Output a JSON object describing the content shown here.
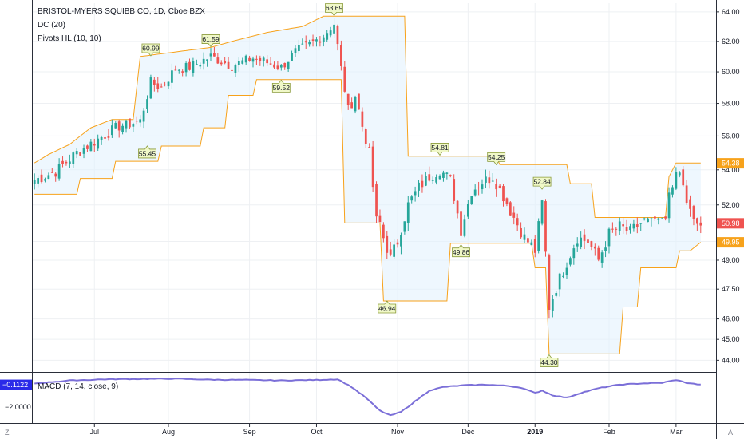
{
  "header": {
    "title": "BRISTOL-MYERS SQUIBB CO, 1D, Cboe BZX",
    "indicator_dc": "DC (20)",
    "indicator_pivots": "Pivots HL (10, 10)",
    "indicator_macd": "MACD (7, 14, close, 9)"
  },
  "corner_left": "Z",
  "corner_right": "A",
  "colors": {
    "up": "#26a69a",
    "down": "#ef5350",
    "channel": "#f7a21b",
    "channel_fill": "#e3f2fd",
    "macd_line": "#7b6fd8",
    "grid": "#eef0f3",
    "pivot_fill": "#f0f8c8",
    "pivot_stroke": "#8a9a3a",
    "tag_orange": "#f7a21b",
    "tag_red": "#ef5350",
    "tag_blue": "#2a2ae8"
  },
  "chart_data": {
    "type": "candlestick",
    "price_axis": {
      "ticks": [
        44.0,
        45.0,
        46.0,
        47.5,
        49.0,
        50.0,
        52.0,
        54.0,
        56.0,
        58.0,
        60.0,
        62.0,
        64.0
      ],
      "labels": [
        "44.00",
        "45.00",
        "46.00",
        "47.50",
        "49.00",
        "50.00",
        "52.00",
        "54.00",
        "56.00",
        "58.00",
        "60.00",
        "62.00",
        "64.00"
      ],
      "scale": "log",
      "range": [
        43.6,
        64.6
      ]
    },
    "macd_axis": {
      "range": [
        -3.2,
        0.9
      ],
      "current_value": -0.1122,
      "current_label": "−0.1122",
      "tick_value": -2.0,
      "tick_label": "−2.0000"
    },
    "time_axis": {
      "labels": [
        {
          "text": "Jul",
          "index": 17,
          "bold": false
        },
        {
          "text": "Aug",
          "index": 38,
          "bold": false
        },
        {
          "text": "Sep",
          "index": 61,
          "bold": false
        },
        {
          "text": "Oct",
          "index": 80,
          "bold": false
        },
        {
          "text": "Nov",
          "index": 103,
          "bold": false
        },
        {
          "text": "Dec",
          "index": 123,
          "bold": false
        },
        {
          "text": "2019",
          "index": 142,
          "bold": true
        },
        {
          "text": "Feb",
          "index": 163,
          "bold": false
        },
        {
          "text": "Mar",
          "index": 182,
          "bold": false
        }
      ]
    },
    "price_tags": [
      {
        "value": 54.38,
        "label": "54.38",
        "color": "#f7a21b"
      },
      {
        "value": 50.98,
        "label": "50.98",
        "color": "#ef5350"
      },
      {
        "value": 49.95,
        "label": "49.95",
        "color": "#f7a21b"
      }
    ],
    "pivots": [
      {
        "label": "60.99",
        "index": 33,
        "value": 60.99,
        "type": "high"
      },
      {
        "label": "61.59",
        "index": 50,
        "value": 61.59,
        "type": "high"
      },
      {
        "label": "63.69",
        "index": 85,
        "value": 63.69,
        "type": "high"
      },
      {
        "label": "54.81",
        "index": 115,
        "value": 54.81,
        "type": "high"
      },
      {
        "label": "54.25",
        "index": 131,
        "value": 54.25,
        "type": "high"
      },
      {
        "label": "52.84",
        "index": 144,
        "value": 52.84,
        "type": "high"
      },
      {
        "label": "55.45",
        "index": 32,
        "value": 55.45,
        "type": "low"
      },
      {
        "label": "59.52",
        "index": 70,
        "value": 59.52,
        "type": "low"
      },
      {
        "label": "46.94",
        "index": 100,
        "value": 46.94,
        "type": "low"
      },
      {
        "label": "49.86",
        "index": 121,
        "value": 49.86,
        "type": "low"
      },
      {
        "label": "44.30",
        "index": 146,
        "value": 44.3,
        "type": "low"
      }
    ],
    "close_anchors": [
      [
        0,
        53.4
      ],
      [
        6,
        53.9
      ],
      [
        12,
        55.0
      ],
      [
        18,
        55.8
      ],
      [
        24,
        56.6
      ],
      [
        30,
        56.9
      ],
      [
        33,
        59.3
      ],
      [
        36,
        59.0
      ],
      [
        40,
        60.2
      ],
      [
        44,
        60.3
      ],
      [
        50,
        61.0
      ],
      [
        56,
        60.4
      ],
      [
        62,
        60.9
      ],
      [
        66,
        60.6
      ],
      [
        70,
        60.3
      ],
      [
        74,
        61.3
      ],
      [
        78,
        61.8
      ],
      [
        82,
        62.4
      ],
      [
        85,
        63.2
      ],
      [
        87,
        60.2
      ],
      [
        89,
        57.6
      ],
      [
        91,
        58.5
      ],
      [
        93,
        56.6
      ],
      [
        95,
        55.0
      ],
      [
        97,
        51.1
      ],
      [
        99,
        50.2
      ],
      [
        101,
        49.1
      ],
      [
        103,
        50.0
      ],
      [
        106,
        52.0
      ],
      [
        109,
        53.0
      ],
      [
        112,
        53.6
      ],
      [
        115,
        54.0
      ],
      [
        118,
        53.4
      ],
      [
        121,
        50.6
      ],
      [
        124,
        52.8
      ],
      [
        127,
        53.3
      ],
      [
        130,
        53.6
      ],
      [
        133,
        52.5
      ],
      [
        136,
        51.3
      ],
      [
        139,
        50.2
      ],
      [
        142,
        49.5
      ],
      [
        144,
        52.1
      ],
      [
        146,
        46.6
      ],
      [
        148,
        47.6
      ],
      [
        151,
        48.9
      ],
      [
        154,
        50.2
      ],
      [
        157,
        50.0
      ],
      [
        160,
        49.0
      ],
      [
        163,
        50.4
      ],
      [
        166,
        50.8
      ],
      [
        169,
        50.5
      ],
      [
        172,
        51.0
      ],
      [
        175,
        51.4
      ],
      [
        178,
        51.6
      ],
      [
        181,
        53.3
      ],
      [
        183,
        53.8
      ],
      [
        185,
        52.2
      ],
      [
        187,
        51.0
      ],
      [
        189,
        50.9
      ]
    ],
    "bar_count": 190,
    "dc_upper_anchors": [
      [
        0,
        54.4
      ],
      [
        4,
        54.9
      ],
      [
        10,
        55.5
      ],
      [
        16,
        56.5
      ],
      [
        22,
        57.0
      ],
      [
        28,
        57.0
      ],
      [
        30,
        61.0
      ],
      [
        50,
        61.6
      ],
      [
        56,
        62.0
      ],
      [
        66,
        62.6
      ],
      [
        76,
        63.0
      ],
      [
        82,
        63.7
      ],
      [
        85,
        63.7
      ],
      [
        105,
        63.7
      ],
      [
        106,
        54.8
      ],
      [
        110,
        54.8
      ],
      [
        131,
        54.8
      ],
      [
        132,
        54.3
      ],
      [
        151,
        54.3
      ],
      [
        152,
        53.2
      ],
      [
        158,
        53.2
      ],
      [
        159,
        51.3
      ],
      [
        179,
        51.3
      ],
      [
        180,
        53.6
      ],
      [
        182,
        54.4
      ],
      [
        189,
        54.4
      ]
    ],
    "dc_lower_anchors": [
      [
        0,
        52.6
      ],
      [
        12,
        52.6
      ],
      [
        13,
        53.5
      ],
      [
        22,
        53.5
      ],
      [
        23,
        54.5
      ],
      [
        35,
        54.5
      ],
      [
        36,
        55.4
      ],
      [
        47,
        55.4
      ],
      [
        48,
        56.5
      ],
      [
        54,
        56.5
      ],
      [
        55,
        58.5
      ],
      [
        62,
        58.5
      ],
      [
        63,
        59.5
      ],
      [
        85,
        59.5
      ],
      [
        86,
        59.5
      ],
      [
        87,
        59.5
      ],
      [
        88,
        51.0
      ],
      [
        98,
        51.0
      ],
      [
        99,
        46.9
      ],
      [
        117,
        46.9
      ],
      [
        118,
        49.9
      ],
      [
        141,
        49.9
      ],
      [
        142,
        48.6
      ],
      [
        145,
        48.6
      ],
      [
        146,
        44.3
      ],
      [
        166,
        44.3
      ],
      [
        167,
        46.6
      ],
      [
        171,
        46.6
      ],
      [
        172,
        48.6
      ],
      [
        182,
        48.6
      ],
      [
        183,
        49.5
      ],
      [
        186,
        49.5
      ],
      [
        189,
        49.95
      ]
    ],
    "macd_anchors": [
      [
        0,
        0.0
      ],
      [
        10,
        0.25
      ],
      [
        20,
        0.35
      ],
      [
        30,
        0.38
      ],
      [
        40,
        0.4
      ],
      [
        50,
        0.32
      ],
      [
        60,
        0.3
      ],
      [
        70,
        0.25
      ],
      [
        80,
        0.3
      ],
      [
        86,
        0.35
      ],
      [
        90,
        -0.3
      ],
      [
        94,
        -1.2
      ],
      [
        98,
        -2.3
      ],
      [
        101,
        -2.7
      ],
      [
        104,
        -2.4
      ],
      [
        108,
        -1.5
      ],
      [
        112,
        -0.6
      ],
      [
        116,
        -0.3
      ],
      [
        122,
        -0.15
      ],
      [
        128,
        -0.1
      ],
      [
        134,
        -0.2
      ],
      [
        138,
        -0.35
      ],
      [
        142,
        -0.8
      ],
      [
        144,
        -0.6
      ],
      [
        147,
        -1.0
      ],
      [
        151,
        -1.2
      ],
      [
        155,
        -0.8
      ],
      [
        160,
        -0.4
      ],
      [
        166,
        -0.1
      ],
      [
        172,
        0.0
      ],
      [
        178,
        0.05
      ],
      [
        182,
        0.3
      ],
      [
        185,
        0.05
      ],
      [
        189,
        -0.11
      ]
    ]
  }
}
